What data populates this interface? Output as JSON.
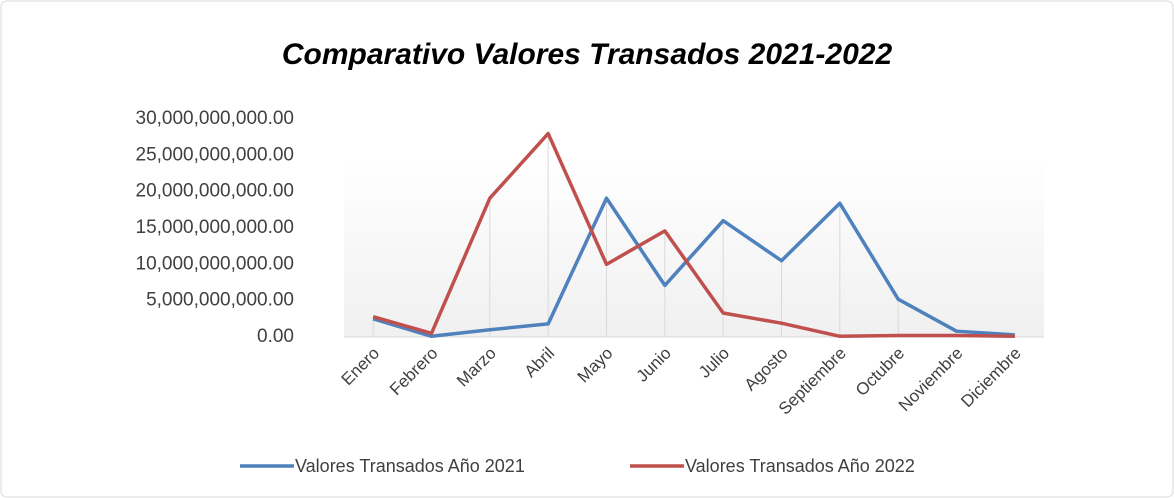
{
  "chart_data": {
    "type": "line",
    "title": "Comparativo Valores Transados 2021-2022",
    "categories": [
      "Enero",
      "Febrero",
      "Marzo",
      "Abril",
      "Mayo",
      "Junio",
      "Julio",
      "Agosto",
      "Septiembre",
      "Octubre",
      "Noviembre",
      "Diciembre"
    ],
    "series": [
      {
        "name": "Valores Transados Año 2021",
        "color": "#4f81bd",
        "values": [
          2500000000,
          100000000,
          1000000000,
          1800000000,
          19100000000,
          7100000000,
          16000000000,
          10500000000,
          18400000000,
          5200000000,
          800000000,
          300000000
        ]
      },
      {
        "name": "Valores Transados Año 2022",
        "color": "#c0504d",
        "values": [
          2800000000,
          500000000,
          19100000000,
          28000000000,
          10000000000,
          14600000000,
          3300000000,
          1900000000,
          100000000,
          200000000,
          200000000,
          100000000
        ]
      }
    ],
    "ylim": [
      0,
      30000000000
    ],
    "yticks": [
      {
        "value": 0,
        "label": "0.00"
      },
      {
        "value": 5000000000,
        "label": "5,000,000,000.00"
      },
      {
        "value": 10000000000,
        "label": "10,000,000,000.00"
      },
      {
        "value": 15000000000,
        "label": "15,000,000,000.00"
      },
      {
        "value": 20000000000,
        "label": "20,000,000,000.00"
      },
      {
        "value": 25000000000,
        "label": "25,000,000,000.00"
      },
      {
        "value": 30000000000,
        "label": "30,000,000,000.00"
      }
    ],
    "legend": "bottom"
  }
}
